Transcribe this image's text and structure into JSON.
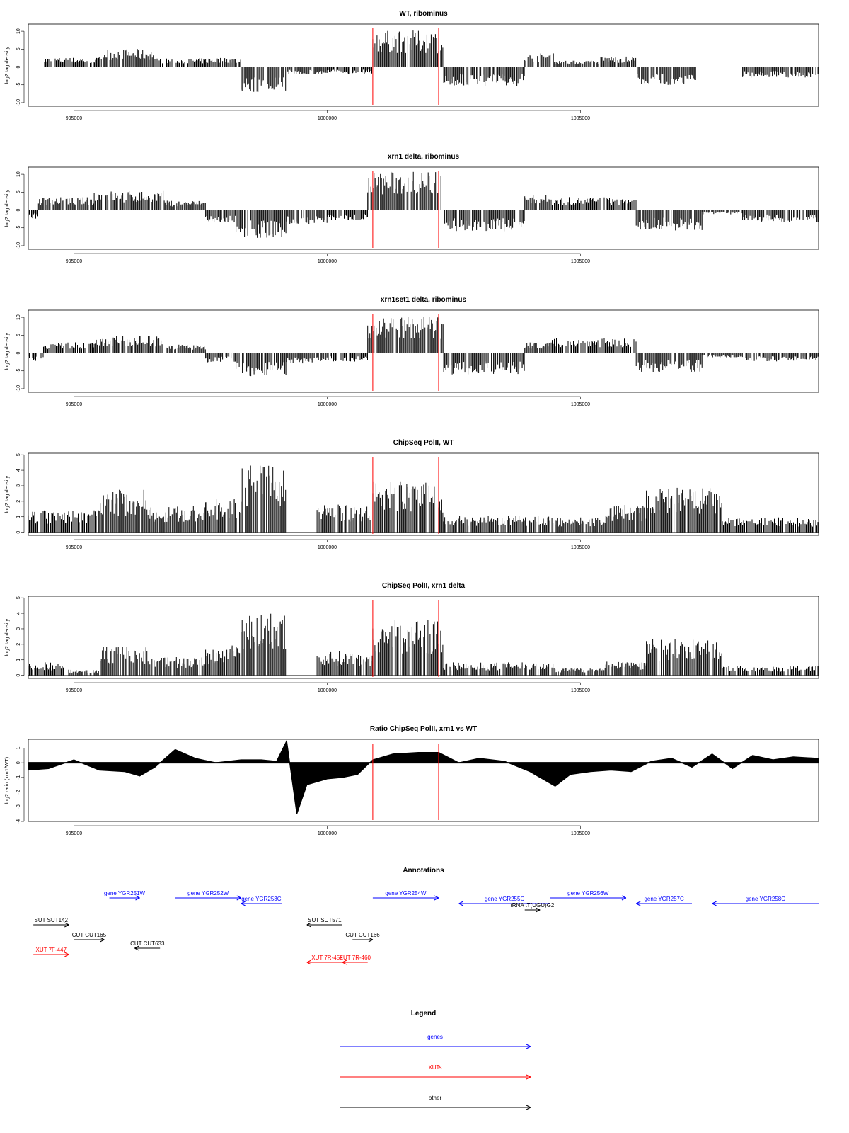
{
  "colors": {
    "gene": "#0000ff",
    "xut": "#ff0000",
    "other": "#000000",
    "marker": "#ff0000",
    "bar": "#000000"
  },
  "chart_data": [
    {
      "type": "bar",
      "title": "WT, ribominus",
      "ylabel": "log2 tag density",
      "xlim": [
        994100,
        1009700
      ],
      "ylim": [
        -11,
        12
      ],
      "yticks": [
        -10,
        -5,
        0,
        5,
        10
      ],
      "xticks": [
        995000,
        1000000,
        1005000
      ],
      "markers": [
        1000900,
        1002200
      ],
      "segments": [
        {
          "from": 994100,
          "to": 994400,
          "value": 0,
          "sign": 1
        },
        {
          "from": 994400,
          "to": 995500,
          "value": 2.2,
          "sign": 1
        },
        {
          "from": 995500,
          "to": 996600,
          "value": 4.2,
          "sign": 1
        },
        {
          "from": 996600,
          "to": 997600,
          "value": 2.0,
          "sign": 1
        },
        {
          "from": 997600,
          "to": 998300,
          "value": 2.2,
          "sign": 1
        },
        {
          "from": 998300,
          "to": 999200,
          "value": 6.0,
          "sign": -1
        },
        {
          "from": 999200,
          "to": 1000000,
          "value": 1.8,
          "sign": -1
        },
        {
          "from": 1000000,
          "to": 1000900,
          "value": 1.6,
          "sign": -1
        },
        {
          "from": 1000900,
          "to": 1002300,
          "value": 8.5,
          "sign": 1
        },
        {
          "from": 1002300,
          "to": 1003900,
          "value": 4.5,
          "sign": -1
        },
        {
          "from": 1003900,
          "to": 1004500,
          "value": 3.2,
          "sign": 1
        },
        {
          "from": 1004500,
          "to": 1005400,
          "value": 1.5,
          "sign": 1
        },
        {
          "from": 1005400,
          "to": 1006100,
          "value": 2.5,
          "sign": 1
        },
        {
          "from": 1006100,
          "to": 1007300,
          "value": 4.2,
          "sign": -1
        },
        {
          "from": 1007300,
          "to": 1008200,
          "value": 0,
          "sign": 1
        },
        {
          "from": 1008200,
          "to": 1009700,
          "value": 2.5,
          "sign": -1
        }
      ]
    },
    {
      "type": "bar",
      "title": "xrn1 delta, ribominus",
      "ylabel": "log2 tag density",
      "xlim": [
        994100,
        1009700
      ],
      "ylim": [
        -11,
        12
      ],
      "yticks": [
        -10,
        -5,
        0,
        5,
        10
      ],
      "xticks": [
        995000,
        1000000,
        1005000
      ],
      "markers": [
        1000900,
        1002200
      ],
      "segments": [
        {
          "from": 994100,
          "to": 994300,
          "value": 2.0,
          "sign": -1
        },
        {
          "from": 994300,
          "to": 995400,
          "value": 3.0,
          "sign": 1
        },
        {
          "from": 995400,
          "to": 996800,
          "value": 4.5,
          "sign": 1
        },
        {
          "from": 996800,
          "to": 997600,
          "value": 2.2,
          "sign": 1
        },
        {
          "from": 997600,
          "to": 998200,
          "value": 3.0,
          "sign": -1
        },
        {
          "from": 998200,
          "to": 999200,
          "value": 6.5,
          "sign": -1
        },
        {
          "from": 999200,
          "to": 1000000,
          "value": 3.5,
          "sign": -1
        },
        {
          "from": 1000000,
          "to": 1000800,
          "value": 2.5,
          "sign": -1
        },
        {
          "from": 1000800,
          "to": 1002300,
          "value": 9.0,
          "sign": 1
        },
        {
          "from": 1002300,
          "to": 1003900,
          "value": 5.0,
          "sign": -1
        },
        {
          "from": 1003900,
          "to": 1004400,
          "value": 3.5,
          "sign": 1
        },
        {
          "from": 1004400,
          "to": 1006100,
          "value": 3.0,
          "sign": 1
        },
        {
          "from": 1006100,
          "to": 1007400,
          "value": 4.8,
          "sign": -1
        },
        {
          "from": 1007400,
          "to": 1008200,
          "value": 1.0,
          "sign": -1
        },
        {
          "from": 1008200,
          "to": 1009700,
          "value": 2.8,
          "sign": -1
        }
      ]
    },
    {
      "type": "bar",
      "title": "xrn1set1 delta, ribominus",
      "ylabel": "log2 tag density",
      "xlim": [
        994100,
        1009700
      ],
      "ylim": [
        -11,
        12
      ],
      "yticks": [
        -10,
        -5,
        0,
        5,
        10
      ],
      "xticks": [
        995000,
        1000000,
        1005000
      ],
      "markers": [
        1000900,
        1002200
      ],
      "segments": [
        {
          "from": 994100,
          "to": 994400,
          "value": 2.0,
          "sign": -1
        },
        {
          "from": 994400,
          "to": 995400,
          "value": 2.5,
          "sign": 1
        },
        {
          "from": 995400,
          "to": 996800,
          "value": 4.0,
          "sign": 1
        },
        {
          "from": 996800,
          "to": 997600,
          "value": 2.0,
          "sign": 1
        },
        {
          "from": 997600,
          "to": 998200,
          "value": 2.2,
          "sign": -1
        },
        {
          "from": 998200,
          "to": 999200,
          "value": 5.5,
          "sign": -1
        },
        {
          "from": 999200,
          "to": 1000000,
          "value": 2.5,
          "sign": -1
        },
        {
          "from": 1000000,
          "to": 1000800,
          "value": 2.0,
          "sign": -1
        },
        {
          "from": 1000800,
          "to": 1002300,
          "value": 8.5,
          "sign": 1
        },
        {
          "from": 1002300,
          "to": 1003900,
          "value": 5.0,
          "sign": -1
        },
        {
          "from": 1003900,
          "to": 1004400,
          "value": 2.5,
          "sign": 1
        },
        {
          "from": 1004400,
          "to": 1006100,
          "value": 3.5,
          "sign": 1
        },
        {
          "from": 1006100,
          "to": 1007400,
          "value": 4.5,
          "sign": -1
        },
        {
          "from": 1007400,
          "to": 1008200,
          "value": 1.0,
          "sign": -1
        },
        {
          "from": 1008200,
          "to": 1009700,
          "value": 2.0,
          "sign": -1
        }
      ]
    },
    {
      "type": "bar",
      "title": "ChipSeq PolII, WT",
      "ylabel": "log2 tag density",
      "xlim": [
        994100,
        1009700
      ],
      "ylim": [
        -0.2,
        5.1
      ],
      "yticks": [
        0,
        1,
        2,
        3,
        4,
        5
      ],
      "xticks": [
        995000,
        1000000,
        1005000
      ],
      "markers": [
        1000900,
        1002200
      ],
      "segments": [
        {
          "from": 994100,
          "to": 995500,
          "value": 1.2,
          "sign": 1
        },
        {
          "from": 995500,
          "to": 996500,
          "value": 2.3,
          "sign": 1
        },
        {
          "from": 996500,
          "to": 997600,
          "value": 1.4,
          "sign": 1
        },
        {
          "from": 997600,
          "to": 998300,
          "value": 1.8,
          "sign": 1
        },
        {
          "from": 998300,
          "to": 999200,
          "value": 3.6,
          "sign": 1
        },
        {
          "from": 999200,
          "to": 999800,
          "value": 0,
          "sign": 1
        },
        {
          "from": 999800,
          "to": 1000900,
          "value": 1.5,
          "sign": 1
        },
        {
          "from": 1000900,
          "to": 1002300,
          "value": 2.8,
          "sign": 1
        },
        {
          "from": 1002300,
          "to": 1004500,
          "value": 0.9,
          "sign": 1
        },
        {
          "from": 1004500,
          "to": 1005500,
          "value": 0.8,
          "sign": 1
        },
        {
          "from": 1005500,
          "to": 1006300,
          "value": 1.5,
          "sign": 1
        },
        {
          "from": 1006300,
          "to": 1007800,
          "value": 2.4,
          "sign": 1
        },
        {
          "from": 1007800,
          "to": 1009700,
          "value": 0.8,
          "sign": 1
        }
      ]
    },
    {
      "type": "bar",
      "title": "ChipSeq PolII, xrn1 delta",
      "ylabel": "log2 tag density",
      "xlim": [
        994100,
        1009700
      ],
      "ylim": [
        -0.2,
        5.1
      ],
      "yticks": [
        0,
        1,
        2,
        3,
        4,
        5
      ],
      "xticks": [
        995000,
        1000000,
        1005000
      ],
      "markers": [
        1000900,
        1002200
      ],
      "segments": [
        {
          "from": 994100,
          "to": 994900,
          "value": 0.7,
          "sign": 1
        },
        {
          "from": 994900,
          "to": 995500,
          "value": 0.3,
          "sign": 1
        },
        {
          "from": 995500,
          "to": 996500,
          "value": 1.6,
          "sign": 1
        },
        {
          "from": 996500,
          "to": 997600,
          "value": 1.0,
          "sign": 1
        },
        {
          "from": 997600,
          "to": 998300,
          "value": 1.6,
          "sign": 1
        },
        {
          "from": 998300,
          "to": 999200,
          "value": 3.4,
          "sign": 1
        },
        {
          "from": 999200,
          "to": 999800,
          "value": 0,
          "sign": 1
        },
        {
          "from": 999800,
          "to": 1000900,
          "value": 1.3,
          "sign": 1
        },
        {
          "from": 1000900,
          "to": 1002300,
          "value": 3.0,
          "sign": 1
        },
        {
          "from": 1002300,
          "to": 1004500,
          "value": 0.7,
          "sign": 1
        },
        {
          "from": 1004500,
          "to": 1005500,
          "value": 0.4,
          "sign": 1
        },
        {
          "from": 1005500,
          "to": 1006300,
          "value": 0.8,
          "sign": 1
        },
        {
          "from": 1006300,
          "to": 1007800,
          "value": 2.0,
          "sign": 1
        },
        {
          "from": 1007800,
          "to": 1009700,
          "value": 0.5,
          "sign": 1
        }
      ]
    },
    {
      "type": "area",
      "title": "Ratio ChipSeq PolII, xrn1 vs WT",
      "ylabel": "log2 ratio (xrn1/WT)",
      "xlim": [
        994100,
        1009700
      ],
      "ylim": [
        -4,
        1.6
      ],
      "yticks": [
        -4,
        -3,
        -2,
        -1,
        0,
        1
      ],
      "xticks": [
        995000,
        1000000,
        1005000
      ],
      "markers": [
        1000900,
        1002200
      ],
      "x": [
        994100,
        994500,
        995000,
        995500,
        996000,
        996300,
        996600,
        997000,
        997400,
        997800,
        998300,
        998700,
        999000,
        999200,
        999400,
        999600,
        1000000,
        1000300,
        1000600,
        1000900,
        1001300,
        1001800,
        1002200,
        1002600,
        1003000,
        1003500,
        1004000,
        1004500,
        1004800,
        1005200,
        1005600,
        1006000,
        1006400,
        1006800,
        1007200,
        1007600,
        1008000,
        1008400,
        1008800,
        1009200,
        1009700
      ],
      "y": [
        -0.5,
        -0.4,
        0.2,
        -0.5,
        -0.6,
        -0.9,
        -0.3,
        0.9,
        0.3,
        0.0,
        0.2,
        0.2,
        0.1,
        1.5,
        -3.5,
        -1.5,
        -1.1,
        -1.0,
        -0.8,
        0.2,
        0.6,
        0.7,
        0.7,
        0.0,
        0.3,
        0.1,
        -0.6,
        -1.6,
        -0.8,
        -0.6,
        -0.5,
        -0.6,
        0.1,
        0.3,
        -0.3,
        0.6,
        -0.4,
        0.5,
        0.2,
        0.4,
        0.3
      ]
    }
  ],
  "annotations": {
    "title": "Annotations",
    "items": [
      {
        "label": "gene YGR251W",
        "from": 995700,
        "to": 996300,
        "row": 0,
        "kind": "gene",
        "dir": "right"
      },
      {
        "label": "gene YGR252W",
        "from": 997000,
        "to": 998300,
        "row": 0,
        "kind": "gene",
        "dir": "right"
      },
      {
        "label": "gene YGR253C",
        "from": 998300,
        "to": 999100,
        "row": 1,
        "kind": "gene",
        "dir": "left"
      },
      {
        "label": "gene YGR254W",
        "from": 1000900,
        "to": 1002200,
        "row": 0,
        "kind": "gene",
        "dir": "right"
      },
      {
        "label": "gene YGR255C",
        "from": 1002600,
        "to": 1004400,
        "row": 1,
        "kind": "gene",
        "dir": "left"
      },
      {
        "label": "gene YGR256W",
        "from": 1004400,
        "to": 1005900,
        "row": 0,
        "kind": "gene",
        "dir": "right"
      },
      {
        "label": "gene YGR257C",
        "from": 1006100,
        "to": 1007200,
        "row": 1,
        "kind": "gene",
        "dir": "left"
      },
      {
        "label": "gene YGR258C",
        "from": 1007600,
        "to": 1009700,
        "row": 1,
        "kind": "gene",
        "dir": "left"
      },
      {
        "label": "tRNA tT(UGU)G2",
        "from": 1003900,
        "to": 1004200,
        "row": 2,
        "kind": "other",
        "dir": "right"
      },
      {
        "label": "SUT SUT142",
        "from": 994200,
        "to": 994900,
        "row": 3,
        "kind": "other",
        "dir": "right"
      },
      {
        "label": "CUT CUT165",
        "from": 995000,
        "to": 995600,
        "row": 4,
        "kind": "other",
        "dir": "right"
      },
      {
        "label": "CUT CUT633",
        "from": 996200,
        "to": 996700,
        "row": 5,
        "kind": "other",
        "dir": "left"
      },
      {
        "label": "XUT 7F-447",
        "from": 994200,
        "to": 994900,
        "row": 6,
        "kind": "xut",
        "dir": "right"
      },
      {
        "label": "SUT SUT571",
        "from": 999600,
        "to": 1000300,
        "row": 3,
        "kind": "other",
        "dir": "left"
      },
      {
        "label": "CUT CUT166",
        "from": 1000500,
        "to": 1000900,
        "row": 4,
        "kind": "other",
        "dir": "right"
      },
      {
        "label": "XUT 7R-459",
        "from": 999600,
        "to": 1000400,
        "row": 7,
        "kind": "xut",
        "dir": "left"
      },
      {
        "label": "XUT 7R-460",
        "from": 1000300,
        "to": 1000800,
        "row": 7,
        "kind": "xut",
        "dir": "left"
      }
    ]
  },
  "legend": {
    "title": "Legend",
    "items": [
      {
        "label": "genes",
        "kind": "gene"
      },
      {
        "label": "XUTs",
        "kind": "xut"
      },
      {
        "label": "other",
        "kind": "other"
      }
    ]
  }
}
